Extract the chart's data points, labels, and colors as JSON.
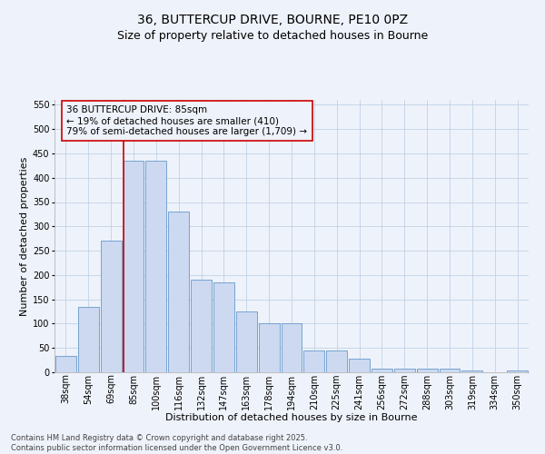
{
  "title_line1": "36, BUTTERCUP DRIVE, BOURNE, PE10 0PZ",
  "title_line2": "Size of property relative to detached houses in Bourne",
  "xlabel": "Distribution of detached houses by size in Bourne",
  "ylabel": "Number of detached properties",
  "categories": [
    "38sqm",
    "54sqm",
    "69sqm",
    "85sqm",
    "100sqm",
    "116sqm",
    "132sqm",
    "147sqm",
    "163sqm",
    "178sqm",
    "194sqm",
    "210sqm",
    "225sqm",
    "241sqm",
    "256sqm",
    "272sqm",
    "288sqm",
    "303sqm",
    "319sqm",
    "334sqm",
    "350sqm"
  ],
  "values": [
    33,
    135,
    270,
    435,
    435,
    330,
    190,
    185,
    125,
    100,
    100,
    45,
    45,
    28,
    8,
    8,
    8,
    8,
    3,
    0,
    3
  ],
  "bar_color": "#ccd9f0",
  "bar_edge_color": "#6699cc",
  "vline_color": "#cc0000",
  "vline_idx": 3,
  "annotation_text": "36 BUTTERCUP DRIVE: 85sqm\n← 19% of detached houses are smaller (410)\n79% of semi-detached houses are larger (1,709) →",
  "annotation_box_facecolor": "#eef2fa",
  "annotation_box_edgecolor": "#cc0000",
  "background_color": "#eef2fa",
  "grid_color": "#b8cce4",
  "ylim": [
    0,
    560
  ],
  "yticks": [
    0,
    50,
    100,
    150,
    200,
    250,
    300,
    350,
    400,
    450,
    500,
    550
  ],
  "footnote": "Contains HM Land Registry data © Crown copyright and database right 2025.\nContains public sector information licensed under the Open Government Licence v3.0.",
  "title_fontsize": 10,
  "subtitle_fontsize": 9,
  "xlabel_fontsize": 8,
  "ylabel_fontsize": 8,
  "tick_fontsize": 7,
  "annotation_fontsize": 7.5,
  "footnote_fontsize": 6
}
